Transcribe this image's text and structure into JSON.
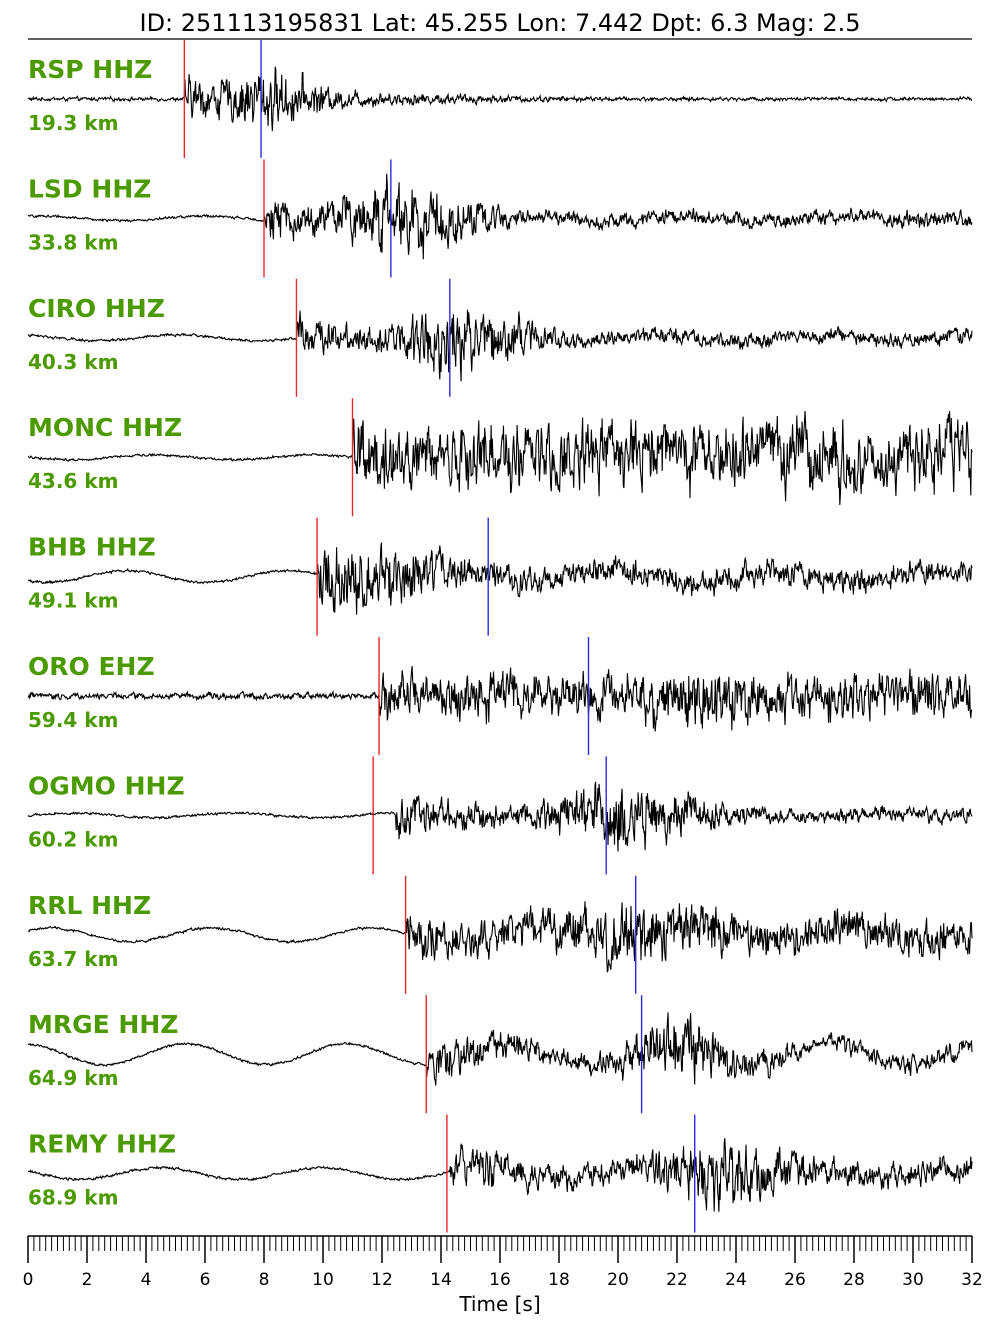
{
  "chart_data": {
    "type": "line",
    "title": "ID: 251113195831 Lat:  45.255 Lon:   7.442 Dpt:     6.3 Mag:   2.5",
    "xlabel": "Time [s]",
    "xlim": [
      0,
      32
    ],
    "x_ticks": [
      "0",
      "2",
      "4",
      "6",
      "8",
      "10",
      "12",
      "14",
      "16",
      "18",
      "20",
      "22",
      "24",
      "26",
      "28",
      "30",
      "32"
    ],
    "grid": false,
    "legend": "none",
    "colors": {
      "label": "#4b9a00",
      "p_pick": "#e8262a",
      "s_pick": "#2b2bd8",
      "trace": "#000000"
    },
    "series": [
      {
        "name": "RSP HHZ",
        "distance": "19.3 km",
        "p_pick": 5.3,
        "s_pick": 7.9,
        "onset": 5.3,
        "noise": 0.03,
        "amp": 0.55,
        "peak": 8.0,
        "decay": 2.6,
        "drift": 0.0,
        "coda": 0.03
      },
      {
        "name": "LSD HHZ",
        "distance": "33.8 km",
        "p_pick": 8.0,
        "s_pick": 12.3,
        "onset": 8.0,
        "noise": 0.02,
        "amp": 0.65,
        "peak": 12.6,
        "decay": 3.5,
        "drift": 0.04,
        "coda": 0.12
      },
      {
        "name": "CIRO HHZ",
        "distance": "40.3 km",
        "p_pick": 9.1,
        "s_pick": 14.3,
        "onset": 9.1,
        "noise": 0.02,
        "amp": 0.6,
        "peak": 14.6,
        "decay": 3.6,
        "drift": 0.05,
        "coda": 0.12
      },
      {
        "name": "MONC HHZ",
        "distance": "43.6 km",
        "p_pick": 11.0,
        "s_pick": null,
        "onset": 11.0,
        "noise": 0.02,
        "amp": 0.55,
        "peak": 25.0,
        "decay": 20.0,
        "drift": 0.04,
        "coda": 0.55
      },
      {
        "name": "BHB HHZ",
        "distance": "49.1 km",
        "p_pick": 9.8,
        "s_pick": 15.6,
        "onset": 9.8,
        "noise": 0.02,
        "amp": 0.55,
        "peak": 10.5,
        "decay": 8.0,
        "drift": 0.1,
        "coda": 0.2
      },
      {
        "name": "ORO EHZ",
        "distance": "59.4 km",
        "p_pick": 11.9,
        "s_pick": 19.0,
        "onset": 11.9,
        "noise": 0.05,
        "amp": 0.5,
        "peak": 22.0,
        "decay": 12.0,
        "drift": 0.0,
        "coda": 0.35
      },
      {
        "name": "OGMO HHZ",
        "distance": "60.2 km",
        "p_pick": 11.7,
        "s_pick": 19.6,
        "onset": 12.4,
        "noise": 0.02,
        "amp": 0.6,
        "peak": 20.2,
        "decay": 4.0,
        "drift": 0.04,
        "coda": 0.12
      },
      {
        "name": "RRL HHZ",
        "distance": "63.7 km",
        "p_pick": 12.8,
        "s_pick": 20.6,
        "onset": 12.8,
        "noise": 0.02,
        "amp": 0.55,
        "peak": 21.2,
        "decay": 9.0,
        "drift": 0.12,
        "coda": 0.3
      },
      {
        "name": "MRGE HHZ",
        "distance": "64.9 km",
        "p_pick": 13.5,
        "s_pick": 20.8,
        "onset": 13.5,
        "noise": 0.02,
        "amp": 0.55,
        "peak": 22.2,
        "decay": 3.5,
        "drift": 0.18,
        "coda": 0.15
      },
      {
        "name": "REMY HHZ",
        "distance": "68.9 km",
        "p_pick": 14.2,
        "s_pick": 22.6,
        "onset": 14.3,
        "noise": 0.02,
        "amp": 0.6,
        "peak": 23.6,
        "decay": 4.0,
        "drift": 0.1,
        "coda": 0.2
      }
    ]
  }
}
